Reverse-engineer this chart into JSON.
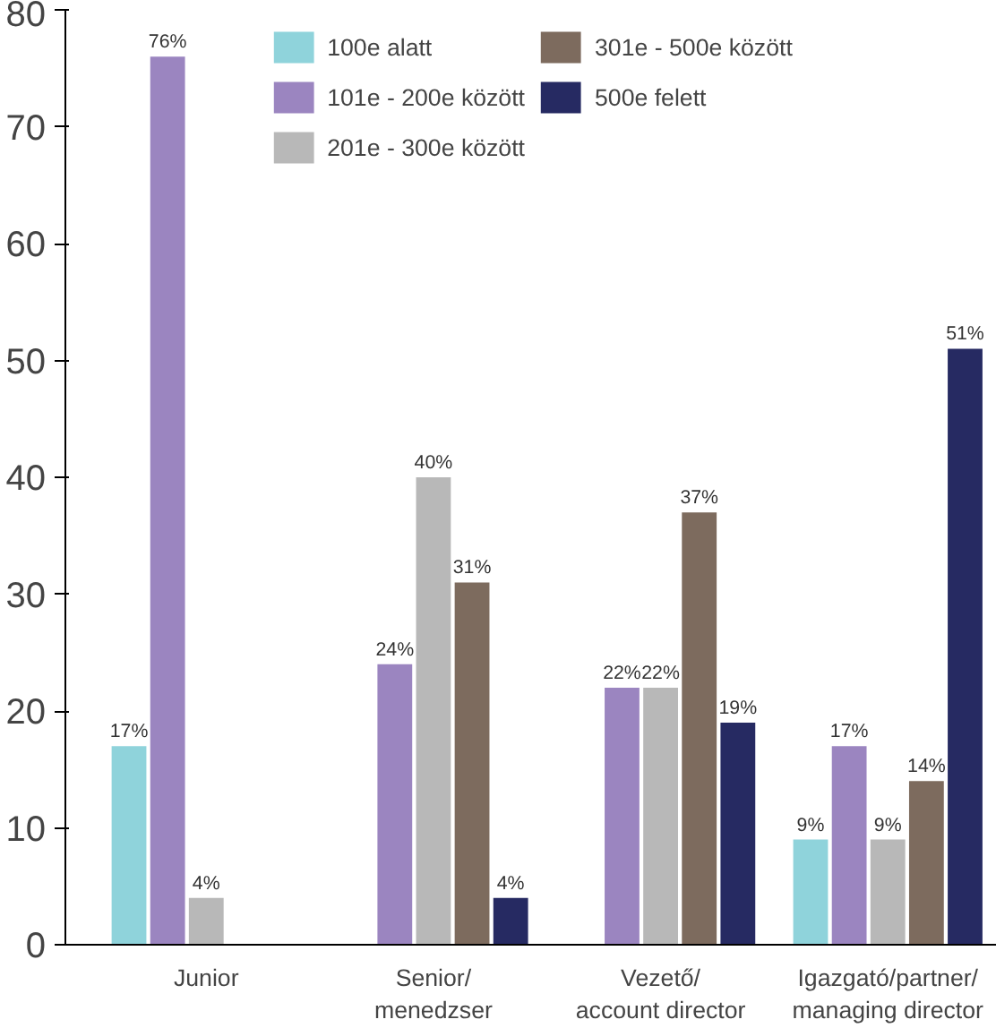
{
  "chart_data": {
    "type": "bar",
    "categories": [
      "Junior",
      "Senior/\nmenedzser",
      "Vezető/\naccount director",
      "Igazgató/partner/\nmanaging director"
    ],
    "series": [
      {
        "name": "100e alatt",
        "color": "#8fd3db",
        "values": [
          17,
          null,
          null,
          9
        ],
        "value_labels": [
          "17%",
          null,
          null,
          "9%"
        ]
      },
      {
        "name": "101e - 200e között",
        "color": "#9b85c0",
        "values": [
          76,
          24,
          22,
          17
        ],
        "value_labels": [
          "76%",
          "24%",
          "22%",
          "17%"
        ]
      },
      {
        "name": "201e - 300e között",
        "color": "#b8b8b8",
        "values": [
          4,
          40,
          22,
          9
        ],
        "value_labels": [
          "4%",
          "40%",
          "22%",
          "9%"
        ]
      },
      {
        "name": "301e - 500e között",
        "color": "#7d6b5e",
        "values": [
          null,
          31,
          37,
          14
        ],
        "value_labels": [
          null,
          "31%",
          "37%",
          "14%"
        ]
      },
      {
        "name": "500e felett",
        "color": "#262a62",
        "values": [
          null,
          4,
          19,
          51
        ],
        "value_labels": [
          null,
          "4%",
          "19%",
          "51%"
        ]
      }
    ],
    "ylim": [
      0,
      80
    ],
    "yticks": [
      0,
      10,
      20,
      30,
      40,
      50,
      60,
      70,
      80
    ],
    "grid": false,
    "legend": "top"
  }
}
